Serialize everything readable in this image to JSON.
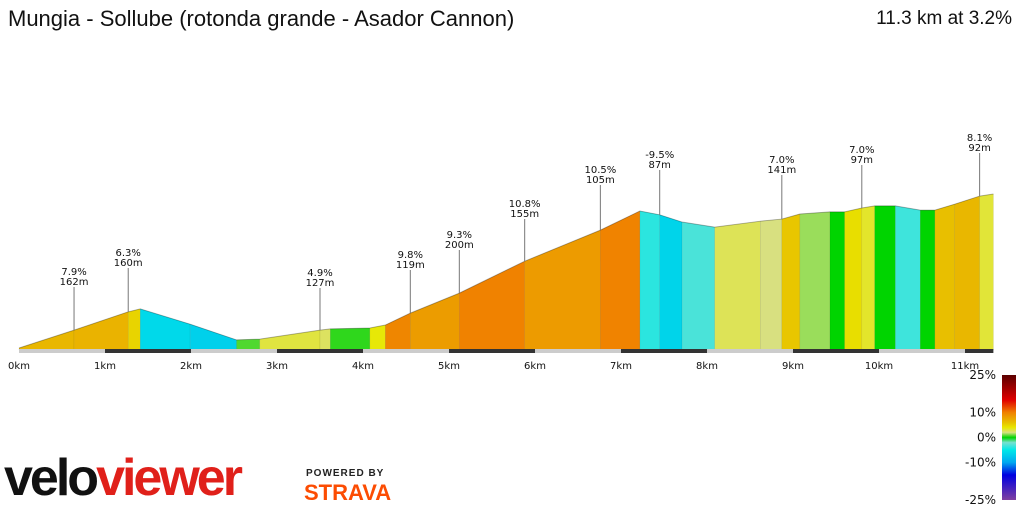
{
  "header": {
    "title": "Mungia - Sollube (rotonda grande - Asador Cannon)",
    "summary": "11.3 km at 3.2%"
  },
  "chart_data": {
    "type": "area",
    "title": "Mungia - Sollube (rotonda grande - Asador Cannon)",
    "xlabel": "",
    "ylabel": "",
    "xlim": [
      0,
      11.33
    ],
    "x_ticks": [
      "0km",
      "1km",
      "2km",
      "3km",
      "4km",
      "5km",
      "6km",
      "7km",
      "8km",
      "9km",
      "10km",
      "11km"
    ],
    "profile": {
      "km": [
        0,
        0.64,
        1.27,
        1.41,
        1.99,
        2.53,
        2.8,
        3.5,
        3.62,
        4.08,
        4.26,
        4.55,
        5.12,
        5.88,
        6.76,
        7.22,
        7.45,
        7.71,
        8.09,
        8.62,
        8.87,
        9.08,
        9.43,
        9.6,
        9.8,
        9.95,
        10.19,
        10.48,
        10.65,
        10.88,
        11.17,
        11.33
      ],
      "elevation_gain_m": [
        0,
        42,
        85,
        92,
        56,
        19,
        21,
        42,
        45,
        47,
        54,
        82,
        129,
        204,
        277,
        322,
        313,
        296,
        284,
        298,
        303,
        315,
        320,
        320,
        329,
        334,
        334,
        324,
        324,
        338,
        357,
        362
      ]
    },
    "annotations": [
      {
        "km": 0.64,
        "gradient": "7.9%",
        "length": "162m"
      },
      {
        "km": 1.27,
        "gradient": "6.3%",
        "length": "160m"
      },
      {
        "km": 3.5,
        "gradient": "4.9%",
        "length": "127m"
      },
      {
        "km": 4.55,
        "gradient": "9.8%",
        "length": "119m"
      },
      {
        "km": 5.12,
        "gradient": "9.3%",
        "length": "200m"
      },
      {
        "km": 5.88,
        "gradient": "10.8%",
        "length": "155m"
      },
      {
        "km": 6.76,
        "gradient": "10.5%",
        "length": "105m"
      },
      {
        "km": 7.45,
        "gradient": "-9.5%",
        "length": "87m"
      },
      {
        "km": 8.87,
        "gradient": "7.0%",
        "length": "141m"
      },
      {
        "km": 9.8,
        "gradient": "7.0%",
        "length": "97m"
      },
      {
        "km": 11.17,
        "gradient": "8.1%",
        "length": "92m"
      }
    ],
    "legend": {
      "labels": [
        "25%",
        "10%",
        "0%",
        "-10%",
        "-25%"
      ],
      "placement": "bottom-right",
      "scale": [
        [
          25,
          "#5a0000"
        ],
        [
          15,
          "#e00000"
        ],
        [
          10,
          "#f08000"
        ],
        [
          6,
          "#e8c000"
        ],
        [
          4,
          "#e8e800"
        ],
        [
          2,
          "#d8e080"
        ],
        [
          0,
          "#00d400"
        ],
        [
          -2,
          "#78e0d0"
        ],
        [
          -5,
          "#00e8e8"
        ],
        [
          -10,
          "#00a8f0"
        ],
        [
          -15,
          "#0000e0"
        ],
        [
          -25,
          "#8040a0"
        ]
      ]
    }
  },
  "branding": {
    "logo_velo": "velo",
    "logo_viewer": "viewer",
    "powered_by": "POWERED BY",
    "strava": "STRAVA"
  }
}
